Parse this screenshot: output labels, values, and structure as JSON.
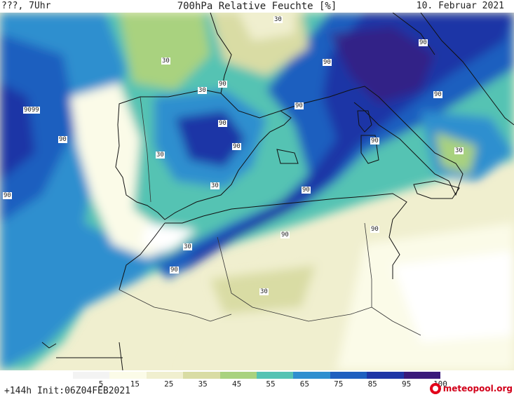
{
  "header": {
    "day_label": "???, 7Uhr",
    "title": "700hPa Relative Feuchte [%]",
    "date": "10. Februar 2021"
  },
  "colorbar": {
    "ticks": [
      "5",
      "15",
      "25",
      "35",
      "45",
      "55",
      "65",
      "75",
      "85",
      "95",
      "100"
    ],
    "colors": [
      "#f3f3f3",
      "#fbfbe8",
      "#f0efcf",
      "#d9dca4",
      "#a9d27f",
      "#55c3b3",
      "#2f8fcf",
      "#1f5fbf",
      "#1f36a6",
      "#3a1a7a"
    ]
  },
  "footer": {
    "run_info": "+144h  Init:06Z04FEB2021",
    "logo_text": "meteopool.org"
  },
  "contour_labels": [
    "30",
    "90",
    "30",
    "30",
    "90",
    "90",
    "90",
    "9099",
    "90",
    "90",
    "90",
    "90",
    "90",
    "90",
    "30",
    "30",
    "90",
    "90",
    "30",
    "90",
    "30",
    "90",
    "30",
    "90",
    "90",
    "90"
  ]
}
